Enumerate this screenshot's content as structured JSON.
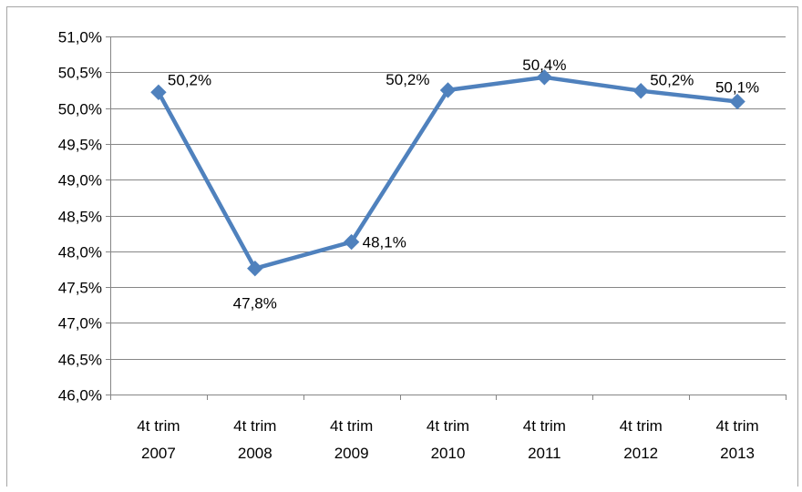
{
  "chart_data": {
    "type": "line",
    "categories": [
      [
        "4t trim",
        "2007"
      ],
      [
        "4t trim",
        "2008"
      ],
      [
        "4t trim",
        "2009"
      ],
      [
        "4t trim",
        "2010"
      ],
      [
        "4t trim",
        "2011"
      ],
      [
        "4t trim",
        "2012"
      ],
      [
        "4t trim",
        "2013"
      ]
    ],
    "series": [
      {
        "values": [
          50.22,
          47.76,
          48.13,
          50.25,
          50.43,
          50.24,
          50.09
        ],
        "data_labels": [
          "50,2%",
          "47,8%",
          "48,1%",
          "50,2%",
          "50,4%",
          "50,2%",
          "50,1%"
        ],
        "color": "#4f81bd",
        "marker": "diamond"
      }
    ],
    "ylim": [
      46.0,
      51.0
    ],
    "y_ticks": [
      "46,0%",
      "46,5%",
      "47,0%",
      "47,5%",
      "48,0%",
      "48,5%",
      "49,0%",
      "49,5%",
      "50,0%",
      "50,5%",
      "51,0%"
    ],
    "y_tick_values": [
      46.0,
      46.5,
      47.0,
      47.5,
      48.0,
      48.5,
      49.0,
      49.5,
      50.0,
      50.5,
      51.0
    ],
    "grid": true,
    "legend": "none",
    "gridline_color": "#868686",
    "axis_color": "#868686"
  }
}
